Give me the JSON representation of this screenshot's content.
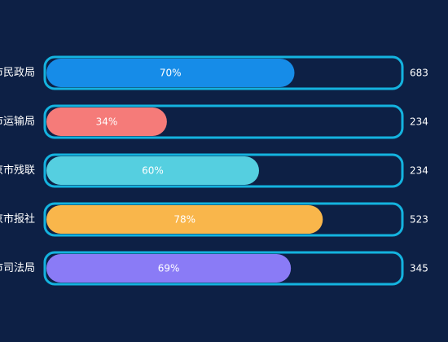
{
  "theme": {
    "background": "#0d2045",
    "track_border": "#14b3df",
    "label_color": "#ffffff",
    "value_color": "#ffffff"
  },
  "chart_data": {
    "type": "bar",
    "orientation": "horizontal",
    "xlim": [
      0,
      100
    ],
    "grid": false,
    "legend": "none",
    "categories": [
      "市民政局",
      "市运输局",
      "京市残联",
      "京市报社",
      "市司法局"
    ],
    "percent_values": [
      70,
      34,
      60,
      78,
      69
    ],
    "percent_labels": [
      "70%",
      "34%",
      "60%",
      "78%",
      "69%"
    ],
    "count_labels": [
      "683",
      "234",
      "234",
      "523",
      "345"
    ],
    "colors": [
      "#168ce8",
      "#f57b79",
      "#55cfe0",
      "#f9b64b",
      "#8a7bf6"
    ]
  }
}
